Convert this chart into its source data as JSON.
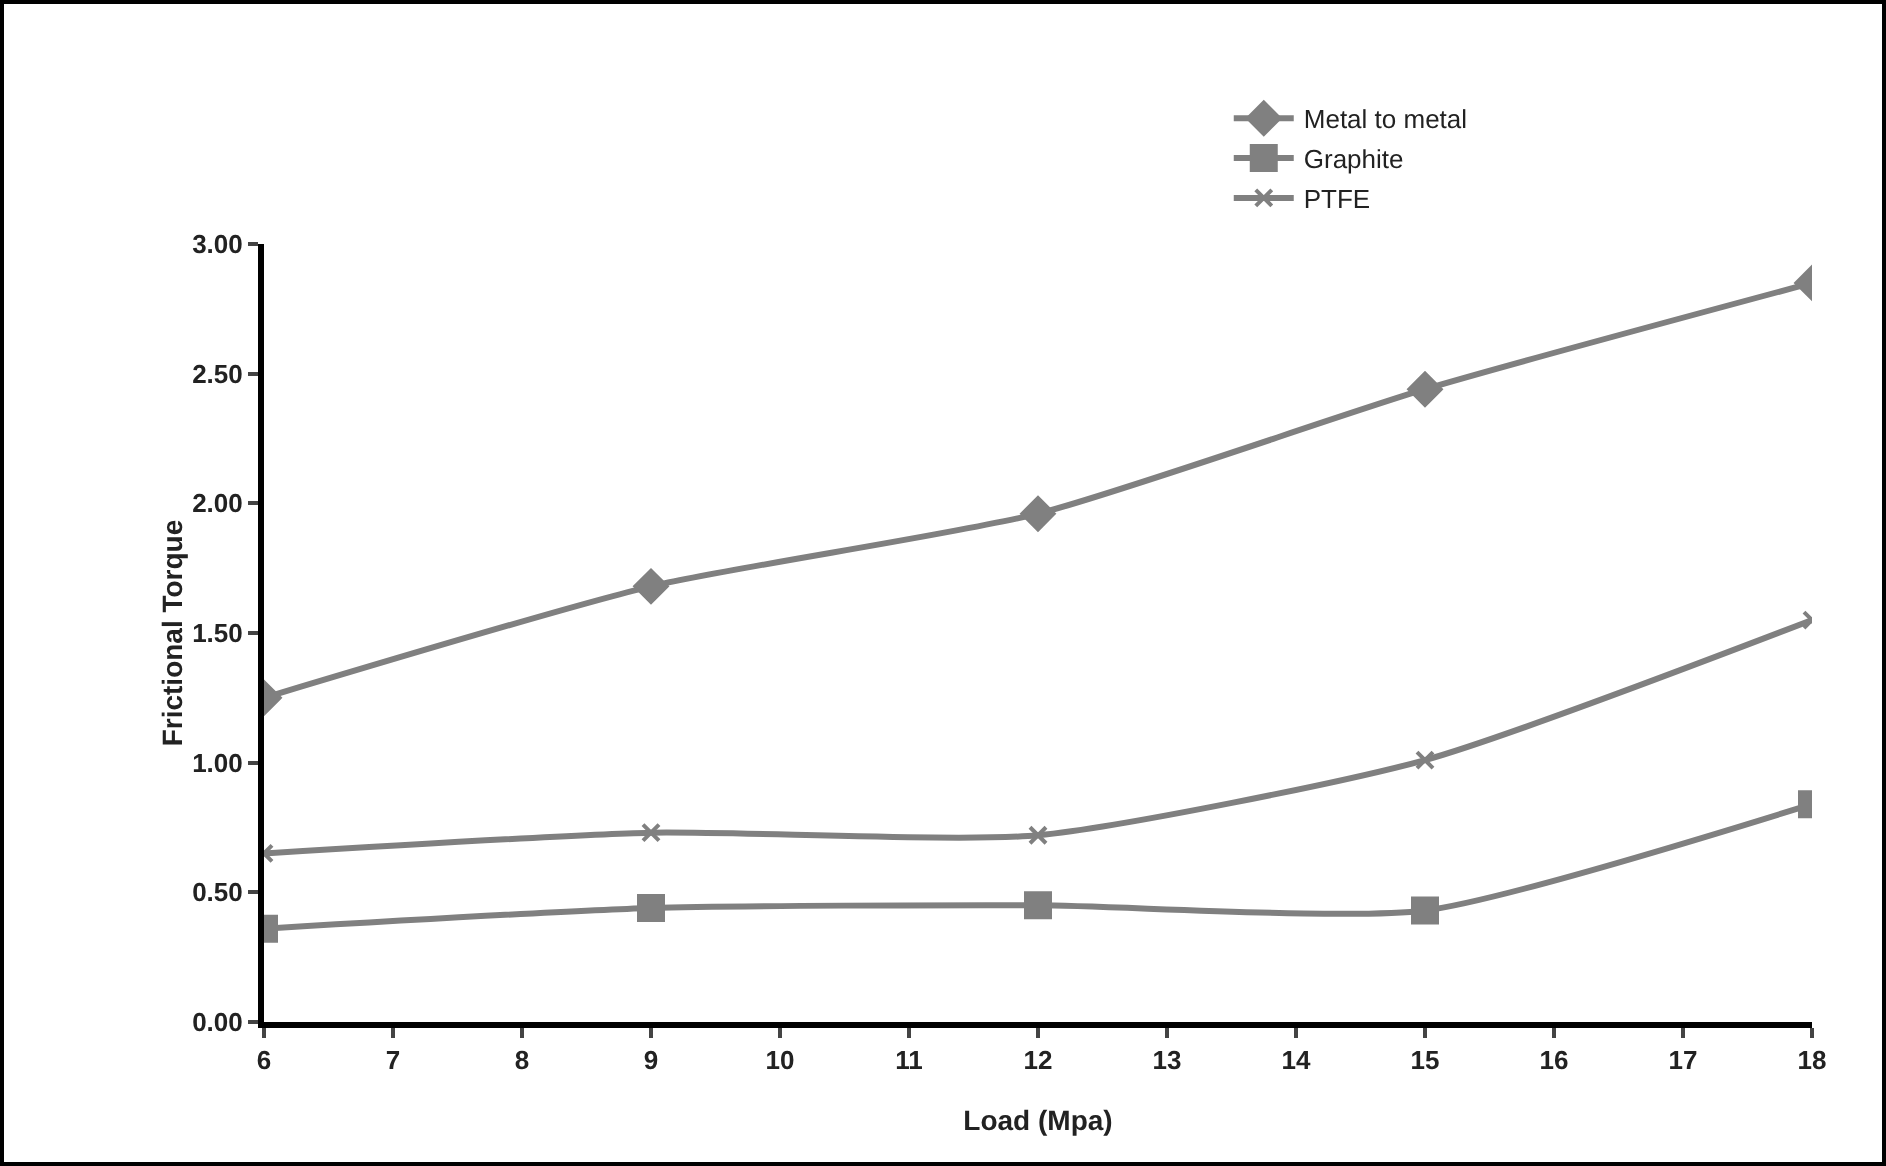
{
  "chart_data": {
    "type": "line",
    "xlabel": "Load (Mpa)",
    "ylabel": "Frictional Torque",
    "x": [
      6,
      9,
      12,
      15,
      18
    ],
    "series": [
      {
        "name": "Metal to metal",
        "color": "#808080",
        "marker": "diamond",
        "values": [
          1.25,
          1.68,
          1.96,
          2.44,
          2.85
        ]
      },
      {
        "name": "Graphite",
        "color": "#808080",
        "marker": "square",
        "values": [
          0.36,
          0.44,
          0.45,
          0.43,
          0.84
        ]
      },
      {
        "name": "PTFE",
        "color": "#808080",
        "marker": "cross",
        "values": [
          0.65,
          0.73,
          0.72,
          1.01,
          1.55
        ]
      }
    ],
    "xlim": [
      6,
      18
    ],
    "xticks": [
      6,
      7,
      8,
      9,
      10,
      11,
      12,
      13,
      14,
      15,
      16,
      17,
      18
    ],
    "ylim": [
      0,
      3
    ],
    "yticks": [
      {
        "value": 0,
        "label": "0.00"
      },
      {
        "value": 0.5,
        "label": "0.50"
      },
      {
        "value": 1,
        "label": "1.00"
      },
      {
        "value": 1.5,
        "label": "1.50"
      },
      {
        "value": 2,
        "label": "2.00"
      },
      {
        "value": 2.5,
        "label": "2.50"
      },
      {
        "value": 3,
        "label": "3.00"
      }
    ],
    "grid": false,
    "legend": "top right",
    "line_style": "solid"
  }
}
